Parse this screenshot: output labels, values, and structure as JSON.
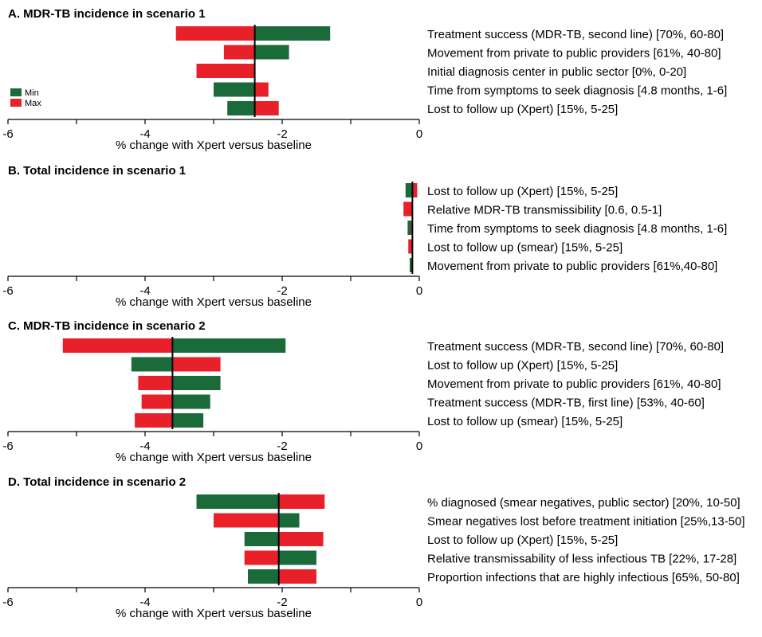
{
  "colors": {
    "min": "#1b6b3a",
    "max": "#e8202a"
  },
  "legend": {
    "items": [
      {
        "key": "min",
        "label": "Min"
      },
      {
        "key": "max",
        "label": "Max"
      }
    ]
  },
  "chart_data": [
    {
      "type": "bar",
      "orientation": "horizontal",
      "title": "A. MDR-TB incidence in scenario 1",
      "xlabel": "% change with Xpert versus baseline",
      "xlim": [
        -6,
        0
      ],
      "xticks": [
        -6,
        -4,
        -2,
        0
      ],
      "baseline": -2.4,
      "categories": [
        "Treatment success (MDR-TB, second line) [70%, 60-80]",
        "Movement from private to public providers [61%, 40-80]",
        "Initial diagnosis center in public sector [0%, 0-20]",
        "Time from symptoms to seek diagnosis [4.8 months, 1-6]",
        "Lost to follow up (Xpert) [15%, 5-25]"
      ],
      "series": [
        {
          "name": "Min",
          "key": "min",
          "values": [
            -1.3,
            -1.9,
            -2.4,
            -3.0,
            -2.8
          ]
        },
        {
          "name": "Max",
          "key": "max",
          "values": [
            -3.55,
            -2.85,
            -3.25,
            -2.2,
            -2.05
          ]
        }
      ]
    },
    {
      "type": "bar",
      "orientation": "horizontal",
      "title": "B. Total incidence in scenario 1",
      "xlabel": "% change with Xpert versus baseline",
      "xlim": [
        -6,
        0
      ],
      "xticks": [
        -6,
        -4,
        -2,
        0
      ],
      "baseline": -0.1,
      "categories": [
        "Lost to follow up (Xpert) [15%, 5-25]",
        "Relative MDR-TB transmissibility [0.6, 0.5-1]",
        "Time from symptoms to seek diagnosis [4.8 months, 1-6]",
        "Lost to follow up (smear) [15%, 5-25]",
        "Movement from private to public providers [61%,40-80]"
      ],
      "series": [
        {
          "name": "Min",
          "key": "min",
          "values": [
            -0.2,
            -0.15,
            -0.17,
            -0.11,
            -0.14
          ]
        },
        {
          "name": "Max",
          "key": "max",
          "values": [
            -0.03,
            -0.23,
            -0.12,
            -0.16,
            -0.1
          ]
        }
      ]
    },
    {
      "type": "bar",
      "orientation": "horizontal",
      "title": "C. MDR-TB incidence in scenario 2",
      "xlabel": "% change with Xpert versus baseline",
      "xlim": [
        -6,
        0
      ],
      "xticks": [
        -6,
        -4,
        -2,
        0
      ],
      "baseline": -3.6,
      "categories": [
        "Treatment success (MDR-TB, second line) [70%, 60-80]",
        "Lost to follow up (Xpert) [15%, 5-25]",
        "Movement from private to public providers [61%, 40-80]",
        "Treatment success (MDR-TB, first line) [53%, 40-60]",
        "Lost to follow up (smear) [15%, 5-25]"
      ],
      "series": [
        {
          "name": "Min",
          "key": "min",
          "values": [
            -1.95,
            -4.2,
            -2.9,
            -3.05,
            -3.15
          ]
        },
        {
          "name": "Max",
          "key": "max",
          "values": [
            -5.2,
            -2.9,
            -4.1,
            -4.05,
            -4.15
          ]
        }
      ]
    },
    {
      "type": "bar",
      "orientation": "horizontal",
      "title": "D. Total incidence in scenario 2",
      "xlabel": "% change with Xpert versus baseline",
      "xlim": [
        -6,
        0
      ],
      "xticks": [
        -6,
        -4,
        -2,
        0
      ],
      "baseline": -2.05,
      "categories": [
        "% diagnosed (smear negatives, public sector) [20%, 10-50]",
        "Smear negatives lost before treatment initiation [25%,13-50]",
        "Lost to follow up (Xpert) [15%, 5-25]",
        "Relative transmissability of less infectious TB [22%, 17-28]",
        "Proportion infections that are highly infectious [65%, 50-80]"
      ],
      "series": [
        {
          "name": "Min",
          "key": "min",
          "values": [
            -3.25,
            -1.75,
            -2.55,
            -1.5,
            -2.5
          ]
        },
        {
          "name": "Max",
          "key": "max",
          "values": [
            -1.38,
            -3.0,
            -1.4,
            -2.55,
            -1.5
          ]
        }
      ]
    }
  ]
}
